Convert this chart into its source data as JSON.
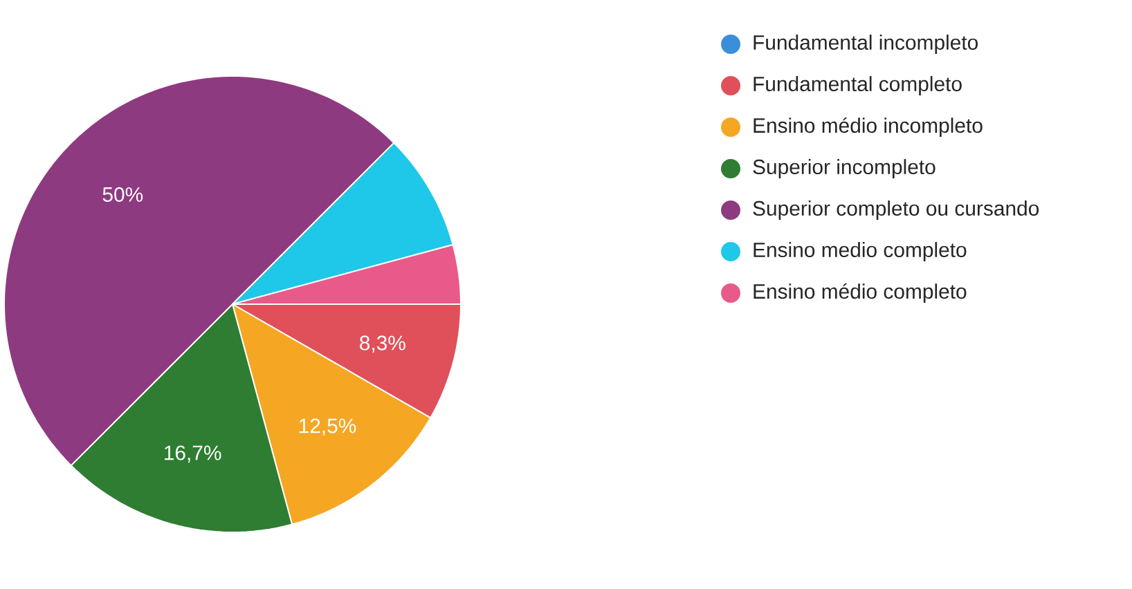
{
  "chart_data": {
    "type": "pie",
    "categories": [
      "Fundamental incompleto",
      "Fundamental completo",
      "Ensino médio incompleto",
      "Superior incompleto",
      "Superior completo ou cursando",
      "Ensino medio completo",
      "Ensino médio completo"
    ],
    "values": [
      0,
      8.3,
      12.5,
      16.7,
      50,
      8.3,
      4.2
    ],
    "colors": [
      "#3b8ed8",
      "#e0505a",
      "#f5a623",
      "#2e7d32",
      "#8e3a80",
      "#1fc8e8",
      "#e85a8a"
    ],
    "value_labels": [
      null,
      "8,3%",
      "12,5%",
      "16,7%",
      "50%",
      null,
      null
    ],
    "legend": "right"
  }
}
